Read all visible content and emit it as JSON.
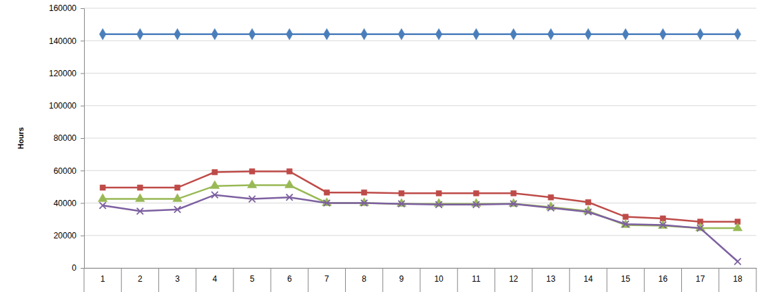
{
  "chart_data": {
    "type": "line",
    "y_label": "Hours",
    "categories": [
      "1",
      "2",
      "3",
      "4",
      "5",
      "6",
      "7",
      "8",
      "9",
      "10",
      "11",
      "12",
      "13",
      "14",
      "15",
      "16",
      "17",
      "18"
    ],
    "series": [
      {
        "color": "#4a7ebb",
        "marker": "diamond",
        "values": [
          144000,
          144000,
          144000,
          144000,
          144000,
          144000,
          144000,
          144000,
          144000,
          144000,
          144000,
          144000,
          144000,
          144000,
          144000,
          144000,
          144000,
          144000
        ]
      },
      {
        "color": "#be4b48",
        "marker": "square",
        "values": [
          49500,
          49500,
          49500,
          59000,
          59500,
          59500,
          46500,
          46500,
          46000,
          46000,
          46000,
          46000,
          43500,
          40500,
          31500,
          30500,
          28500,
          28500
        ]
      },
      {
        "color": "#98b954",
        "marker": "triangle",
        "values": [
          42500,
          42500,
          42500,
          50500,
          51000,
          51000,
          40000,
          40000,
          39500,
          39500,
          39500,
          39500,
          37500,
          35000,
          26500,
          26000,
          24500,
          24500
        ]
      },
      {
        "color": "#7d60a0",
        "marker": "x",
        "values": [
          38500,
          35000,
          36000,
          45000,
          42500,
          43500,
          40000,
          40000,
          39500,
          39000,
          39000,
          39500,
          37000,
          34500,
          27000,
          26500,
          24500,
          4000
        ]
      }
    ],
    "ylim": [
      0,
      160000
    ],
    "yticks": [
      0,
      20000,
      40000,
      60000,
      80000,
      100000,
      120000,
      140000,
      160000
    ],
    "grid": true
  }
}
